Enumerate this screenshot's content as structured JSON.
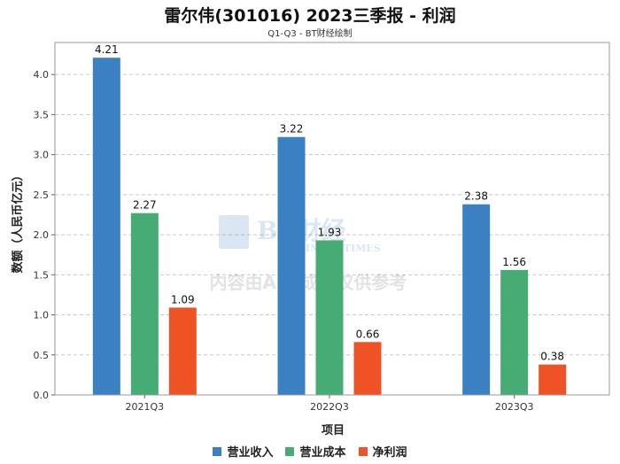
{
  "chart_data": {
    "type": "bar",
    "title": "雷尔伟(301016) 2023三季报 - 利润",
    "subtitle": "Q1-Q3 - BT财经绘制",
    "xlabel": "项目",
    "ylabel": "数额（人民币亿元）",
    "categories": [
      "2021Q3",
      "2022Q3",
      "2023Q3"
    ],
    "ylim": [
      0,
      4.4
    ],
    "yticks": [
      "0.0",
      "0.5",
      "1.0",
      "1.5",
      "2.0",
      "2.5",
      "3.0",
      "3.5",
      "4.0"
    ],
    "grid": true,
    "legend_position": "bottom",
    "series": [
      {
        "name": "营业收入",
        "color": "#3a80c2",
        "values": [
          4.21,
          3.22,
          2.38
        ],
        "labels": [
          "4.21",
          "3.22",
          "2.38"
        ]
      },
      {
        "name": "营业成本",
        "color": "#47ab74",
        "values": [
          2.27,
          1.93,
          1.56
        ],
        "labels": [
          "2.27",
          "1.93",
          "1.56"
        ]
      },
      {
        "name": "净利润",
        "color": "#ef5325",
        "values": [
          1.09,
          0.66,
          0.38
        ],
        "labels": [
          "1.09",
          "0.66",
          "0.38"
        ]
      }
    ]
  },
  "watermark": {
    "brand": "BT财经",
    "brand_en": "BUSINESS TIMES",
    "notice": "内容由AI生成，仅供参考"
  }
}
